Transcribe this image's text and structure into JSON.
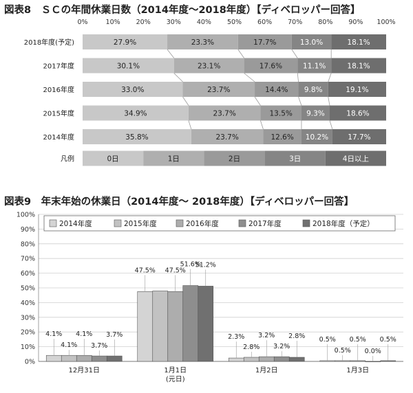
{
  "chart_data": [
    {
      "type": "bar",
      "orientation": "horizontal",
      "stacked": true,
      "title": "図表8　ＳＣの年間休業日数（2014年度～2018年度）【ディベロッパー回答】",
      "x_tick_labels": [
        "0%",
        "10%",
        "20%",
        "30%",
        "40%",
        "50%",
        "60%",
        "70%",
        "80%",
        "90%",
        "100%"
      ],
      "xlim": [
        0,
        100
      ],
      "categories": [
        "2018年度(予定)",
        "2017年度",
        "2016年度",
        "2015年度",
        "2014年度"
      ],
      "series": [
        {
          "name": "0日",
          "values": [
            27.9,
            30.1,
            33.0,
            34.9,
            35.8
          ],
          "labels": [
            "27.9%",
            "30.1%",
            "33.0%",
            "34.9%",
            "35.8%"
          ],
          "color": "#c8c8c8"
        },
        {
          "name": "1日",
          "values": [
            23.3,
            23.1,
            23.7,
            23.7,
            23.7
          ],
          "labels": [
            "23.3%",
            "23.1%",
            "23.7%",
            "23.7%",
            "23.7%"
          ],
          "color": "#afafaf"
        },
        {
          "name": "2日",
          "values": [
            17.7,
            17.6,
            14.4,
            13.5,
            12.6
          ],
          "labels": [
            "17.7%",
            "17.6%",
            "14.4%",
            "13.5%",
            "12.6%"
          ],
          "color": "#9a9a9a"
        },
        {
          "name": "3日",
          "values": [
            13.0,
            11.1,
            9.8,
            9.3,
            10.2
          ],
          "labels": [
            "13.0%",
            "11.1%",
            "9.8%",
            "9.3%",
            "10.2%"
          ],
          "color": "#858585"
        },
        {
          "name": "4日以上",
          "values": [
            18.1,
            18.1,
            19.1,
            18.6,
            17.7
          ],
          "labels": [
            "18.1%",
            "18.1%",
            "19.1%",
            "18.6%",
            "17.7%"
          ],
          "color": "#6e6e6e"
        }
      ],
      "legend": {
        "row_label": "凡例",
        "items": [
          "0日",
          "1日",
          "2日",
          "3日",
          "4日以上"
        ]
      },
      "grid": false
    },
    {
      "type": "bar",
      "title": "図表9　年末年始の休業日（2014年度～ 2018年度）【ディベロッパー回答】",
      "y_tick_labels": [
        "0%",
        "10%",
        "20%",
        "30%",
        "40%",
        "50%",
        "60%",
        "70%",
        "80%",
        "90%",
        "100%"
      ],
      "ylim": [
        0,
        100
      ],
      "categories": [
        "12月31日",
        "1月1日\n(元日)",
        "1月2日",
        "1月3日"
      ],
      "category_lines": [
        [
          "12月31日"
        ],
        [
          "1月1日",
          "(元日)"
        ],
        [
          "1月2日"
        ],
        [
          "1月3日"
        ]
      ],
      "series": [
        {
          "name": "2014年度",
          "values": [
            4.1,
            47.5,
            2.3,
            0.5
          ],
          "labels": [
            "4.1%",
            "47.5%",
            "2.3%",
            "0.5%"
          ],
          "color": "#d4d4d4"
        },
        {
          "name": "2015年度",
          "values": [
            4.1,
            47.9,
            2.8,
            0.5
          ],
          "labels": [
            "4.1%",
            "",
            "2.8%",
            "0.5%"
          ],
          "color": "#c2c2c2"
        },
        {
          "name": "2016年度",
          "values": [
            4.1,
            47.5,
            3.2,
            0.5
          ],
          "labels": [
            "4.1%",
            "47.5%",
            "3.2%",
            "0.5%"
          ],
          "color": "#adadad"
        },
        {
          "name": "2017年度",
          "values": [
            3.7,
            51.6,
            3.2,
            0.0
          ],
          "labels": [
            "3.7%",
            "51.6%",
            "3.2%",
            "0.0%"
          ],
          "color": "#8e8e8e"
        },
        {
          "name": "2018年度（予定）",
          "values": [
            3.7,
            51.2,
            2.8,
            0.5
          ],
          "labels": [
            "3.7%",
            "51.2%",
            "2.8%",
            "0.5%"
          ],
          "color": "#707070"
        }
      ],
      "legend_position": "top",
      "grid": true
    }
  ]
}
